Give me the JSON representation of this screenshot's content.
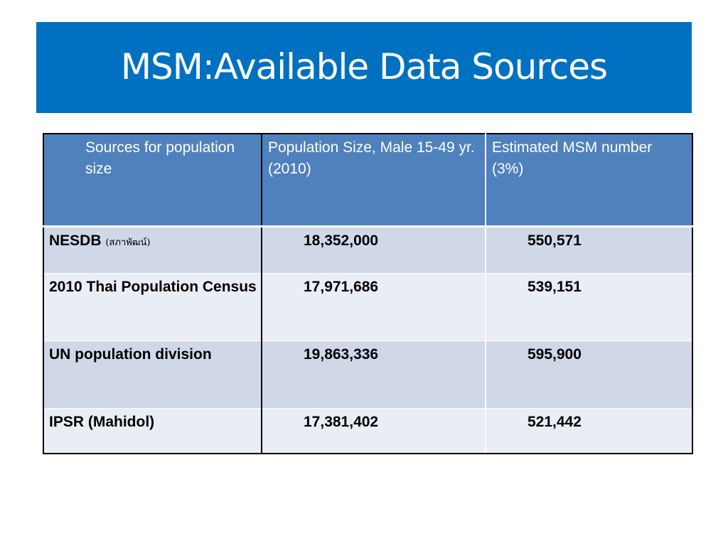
{
  "slide": {
    "title": "MSM:Available Data Sources"
  },
  "table": {
    "headers": [
      "Sources for population size",
      "Population Size, Male 15-49 yr.(2010)",
      "Estimated MSM number (3%)"
    ],
    "rows": [
      {
        "source": "NESDB",
        "source_note": "(สภาพัฒน์)",
        "population": "18,352,000",
        "msm": "550,571"
      },
      {
        "source": "2010 Thai Population Census",
        "population": "17,971,686",
        "msm": "539,151"
      },
      {
        "source": "UN population division",
        "population": "19,863,336",
        "msm": "595,900"
      },
      {
        "source": "IPSR (Mahidol)",
        "population": "17,381,402",
        "msm": "521,442"
      }
    ]
  },
  "colors": {
    "title_bar": "#0070c0",
    "header_bg": "#4f81bd",
    "row_odd": "#d0d8e8",
    "row_even": "#e9edf4"
  }
}
